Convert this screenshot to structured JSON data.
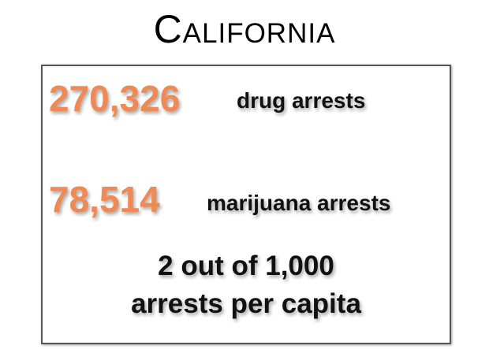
{
  "title": "California",
  "stats": [
    {
      "number": "270,326",
      "label": "drug arrests"
    },
    {
      "number": "78,514",
      "label": "marijuana arrests"
    }
  ],
  "note": [
    "2 out of 1,000",
    "arrests per capita"
  ]
}
